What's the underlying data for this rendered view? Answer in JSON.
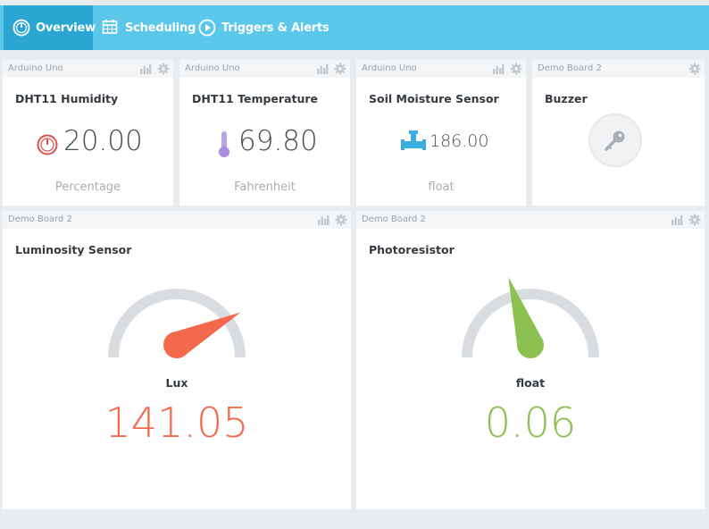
{
  "nav": {
    "tabs": [
      {
        "label": "Overview",
        "icon": "dashboard-icon",
        "active": true
      },
      {
        "label": "Scheduling",
        "icon": "calendar-icon",
        "active": false
      },
      {
        "label": "Triggers & Alerts",
        "icon": "play-circle-icon",
        "active": false
      }
    ]
  },
  "colors": {
    "topbar": "#5bc8eb",
    "active_tab": "#2ba6d3",
    "gauge_track": "#d9dde2",
    "lux_needle": "#f26a4b",
    "float_needle": "#8cc152"
  },
  "widgets": [
    {
      "board": "Arduino Uno",
      "title": "DHT11 Humidity",
      "value": "20.00",
      "unit": "Percentage",
      "icon": "gauge-icon"
    },
    {
      "board": "Arduino Uno",
      "title": "DHT11 Temperature",
      "value": "69.80",
      "unit": "Fahrenheit",
      "icon": "thermometer-icon"
    },
    {
      "board": "Arduino Uno",
      "title": "Soil Moisture Sensor",
      "value": "186.00",
      "unit": "float",
      "icon": "valve-icon"
    },
    {
      "board": "Demo Board 2",
      "title": "Buzzer",
      "icon": "key-icon"
    },
    {
      "board": "Demo Board 2",
      "title": "Luminosity Sensor",
      "unit": "Lux",
      "value": "141.05",
      "gauge_fraction": 0.85
    },
    {
      "board": "Demo Board 2",
      "title": "Photoresistor",
      "unit": "float",
      "value": "0.06",
      "gauge_fraction": 0.4
    }
  ]
}
